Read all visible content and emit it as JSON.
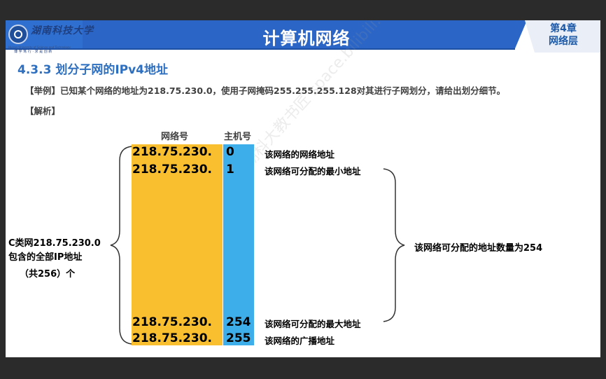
{
  "header": {
    "university_logo": {
      "name_cn": "湖南科技大学",
      "name_en": "Hunan University of Science and Technology",
      "motto": "博 学 笃 行 · 求 是 创 新"
    },
    "title": "计算机网络",
    "chapter": "第4章",
    "chapter_name": "网络层",
    "colors": {
      "band": "#2f6fd0",
      "band_dark": "#1d4fa3",
      "accent": "#1e5aa8"
    }
  },
  "section_title": "4.3.3 划分子网的IPv4地址",
  "example_text": "【举例】已知某个网络的地址为218.75.230.0，使用子网掩码255.255.255.128对其进行子网划分，请给出划分细节。",
  "analysis_label": "【解析】",
  "diagram": {
    "net_label": "网络号",
    "host_label": "主机号",
    "colors": {
      "net": "#f9bf2e",
      "host": "#3daeea"
    },
    "rows": [
      {
        "net": "218.75.230.",
        "host": "0",
        "note": "该网络的网络地址"
      },
      {
        "net": "218.75.230.",
        "host": "1",
        "note": "该网络可分配的最小地址"
      },
      {
        "net": "218.75.230.",
        "host": "254",
        "note": "该网络可分配的最大地址"
      },
      {
        "net": "218.75.230.",
        "host": "255",
        "note": "该网络的广播地址"
      }
    ],
    "left_note": [
      "C类网218.75.230.0",
      "包含的全部IP地址",
      "（共256）个"
    ],
    "right_note": "该网络可分配的地址数量为254"
  },
  "watermark": "湖科大教书匠 space.bilibili.com/360996402 gao1@hnust.edu.cn"
}
